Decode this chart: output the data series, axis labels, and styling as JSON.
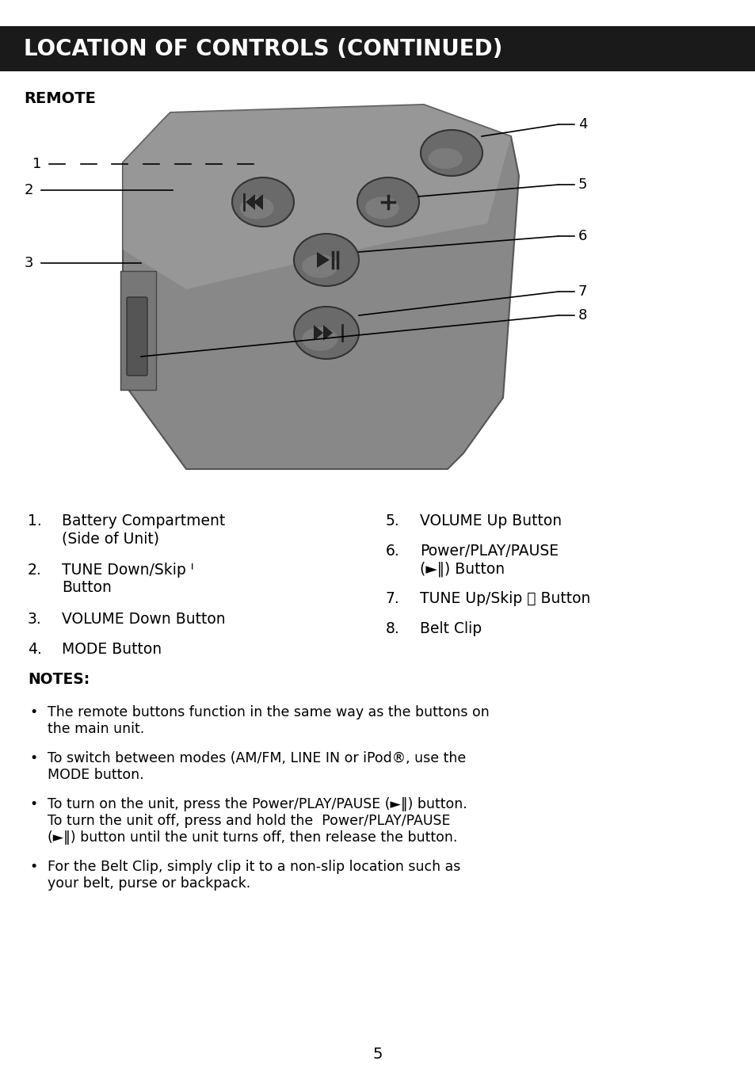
{
  "title": "LOCATION OF CONTROLS (CONTINUED)",
  "title_bg": "#1a1a1a",
  "title_fg": "#ffffff",
  "section_label": "REMOTE",
  "page_number": "5",
  "bg_color": "#ffffff",
  "notes_label": "NOTES:",
  "notes_items": [
    "The remote buttons function in the same way as the buttons on\nthe main unit.",
    "To switch between modes (AM/FM, LINE IN or iPod®, use the\nMODE button.",
    "To turn on the unit, press the Power/PLAY/PAUSE (►‖) button.\nTo turn the unit off, press and hold the  Power/PLAY/PAUSE\n(►‖) button until the unit turns off, then release the button.",
    "For the Belt Clip, simply clip it to a non-slip location such as\nyour belt, purse or backpack."
  ]
}
